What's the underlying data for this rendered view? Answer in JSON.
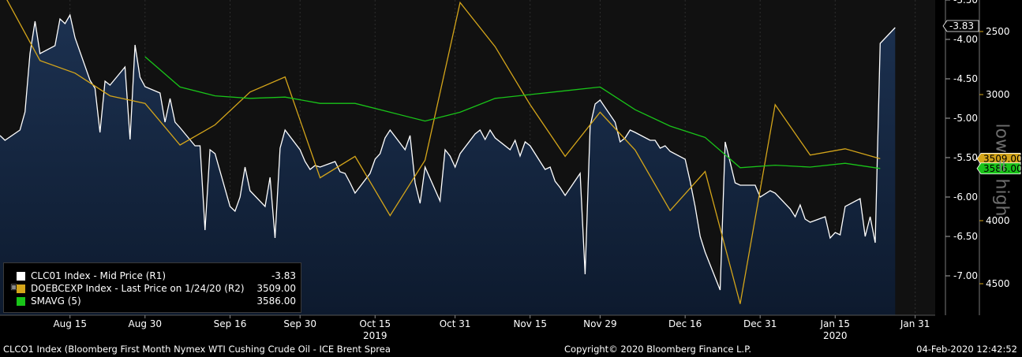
{
  "footer": {
    "left": "CLCO1 Index (Bloomberg First Month Nymex WTI Cushing Crude Oil - ICE Brent Sprea",
    "center": "Copyright© 2020 Bloomberg Finance L.P.",
    "right": "04-Feb-2020 12:42:52"
  },
  "watermark": "low = high",
  "legend": [
    {
      "name": "CLC01 Index - Mid Price (R1)",
      "value": "-3.83",
      "color": "#ffffff"
    },
    {
      "name": "DOEBCEXP Index - Last Price on 1/24/20 (R2)",
      "value": "3509.00",
      "color": "#d4a51a"
    },
    {
      "name": "SMAVG (5)",
      "value": "3586.00",
      "color": "#19c419"
    }
  ],
  "last_labels": {
    "spread": "-3.83",
    "exports": "3509.00",
    "smavg": "3586.00"
  },
  "colors": {
    "background": "#000000",
    "area_top": "#1c3150",
    "area_bottom": "#0d1a2e",
    "spread": "#ffffff",
    "exports": "#d4a51a",
    "smavg": "#19c419"
  },
  "chart_data": {
    "type": "line",
    "x_tick_labels": [
      "Aug 15",
      "Aug 30",
      "Sep 16",
      "Sep 30",
      "Oct 15",
      "Oct 31",
      "Nov 15",
      "Nov 29",
      "Dec 16",
      "Dec 31",
      "Jan 15",
      "Jan 31"
    ],
    "x_tick_dates": [
      "2019-08-15",
      "2019-08-30",
      "2019-09-16",
      "2019-09-30",
      "2019-10-15",
      "2019-10-31",
      "2019-11-15",
      "2019-11-29",
      "2019-12-16",
      "2019-12-31",
      "2020-01-15",
      "2020-01-31"
    ],
    "year_labels": [
      {
        "label": "2019",
        "date": "2019-10-15"
      },
      {
        "label": "2020",
        "date": "2020-01-15"
      }
    ],
    "axes": {
      "R1": {
        "ticks": [
          "-3.50",
          "-4.00",
          "-4.50",
          "-5.00",
          "-5.50",
          "-6.00",
          "-6.50",
          "-7.00"
        ],
        "range": [
          -3.5,
          -7.5
        ],
        "inverted": true
      },
      "R2": {
        "ticks": [
          "2500",
          "3000",
          "3500",
          "4000",
          "4500"
        ],
        "range": [
          2250,
          4750
        ],
        "inverted": true
      }
    },
    "series": [
      {
        "name": "CLC01 Index - Mid Price (R1)",
        "axis": "R1",
        "style": "area",
        "points": [
          [
            "2019-08-01",
            -5.22
          ],
          [
            "2019-08-02",
            -5.28
          ],
          [
            "2019-08-05",
            -5.15
          ],
          [
            "2019-08-06",
            -4.92
          ],
          [
            "2019-08-07",
            -4.18
          ],
          [
            "2019-08-08",
            -3.77
          ],
          [
            "2019-08-09",
            -4.18
          ],
          [
            "2019-08-12",
            -4.08
          ],
          [
            "2019-08-13",
            -3.74
          ],
          [
            "2019-08-14",
            -3.8
          ],
          [
            "2019-08-15",
            -3.69
          ],
          [
            "2019-08-16",
            -3.98
          ],
          [
            "2019-08-19",
            -4.52
          ],
          [
            "2019-08-20",
            -4.62
          ],
          [
            "2019-08-21",
            -5.18
          ],
          [
            "2019-08-22",
            -4.53
          ],
          [
            "2019-08-23",
            -4.58
          ],
          [
            "2019-08-26",
            -4.35
          ],
          [
            "2019-08-27",
            -5.27
          ],
          [
            "2019-08-28",
            -4.07
          ],
          [
            "2019-08-29",
            -4.48
          ],
          [
            "2019-08-30",
            -4.6
          ],
          [
            "2019-09-02",
            -4.68
          ],
          [
            "2019-09-03",
            -5.05
          ],
          [
            "2019-09-04",
            -4.75
          ],
          [
            "2019-09-05",
            -5.05
          ],
          [
            "2019-09-06",
            -5.12
          ],
          [
            "2019-09-09",
            -5.35
          ],
          [
            "2019-09-10",
            -5.35
          ],
          [
            "2019-09-11",
            -6.42
          ],
          [
            "2019-09-12",
            -5.4
          ],
          [
            "2019-09-13",
            -5.45
          ],
          [
            "2019-09-16",
            -6.12
          ],
          [
            "2019-09-17",
            -6.18
          ],
          [
            "2019-09-18",
            -6.0
          ],
          [
            "2019-09-19",
            -5.62
          ],
          [
            "2019-09-20",
            -5.92
          ],
          [
            "2019-09-23",
            -6.12
          ],
          [
            "2019-09-24",
            -5.75
          ],
          [
            "2019-09-25",
            -6.52
          ],
          [
            "2019-09-26",
            -5.38
          ],
          [
            "2019-09-27",
            -5.15
          ],
          [
            "2019-09-30",
            -5.4
          ],
          [
            "2019-10-01",
            -5.55
          ],
          [
            "2019-10-02",
            -5.65
          ],
          [
            "2019-10-03",
            -5.6
          ],
          [
            "2019-10-04",
            -5.62
          ],
          [
            "2019-10-07",
            -5.55
          ],
          [
            "2019-10-08",
            -5.68
          ],
          [
            "2019-10-09",
            -5.7
          ],
          [
            "2019-10-10",
            -5.82
          ],
          [
            "2019-10-11",
            -5.95
          ],
          [
            "2019-10-14",
            -5.7
          ],
          [
            "2019-10-15",
            -5.52
          ],
          [
            "2019-10-16",
            -5.45
          ],
          [
            "2019-10-17",
            -5.25
          ],
          [
            "2019-10-18",
            -5.15
          ],
          [
            "2019-10-21",
            -5.4
          ],
          [
            "2019-10-22",
            -5.22
          ],
          [
            "2019-10-23",
            -5.82
          ],
          [
            "2019-10-24",
            -6.08
          ],
          [
            "2019-10-25",
            -5.62
          ],
          [
            "2019-10-28",
            -6.05
          ],
          [
            "2019-10-29",
            -5.4
          ],
          [
            "2019-10-30",
            -5.48
          ],
          [
            "2019-10-31",
            -5.62
          ],
          [
            "2019-11-01",
            -5.45
          ],
          [
            "2019-11-04",
            -5.2
          ],
          [
            "2019-11-05",
            -5.15
          ],
          [
            "2019-11-06",
            -5.27
          ],
          [
            "2019-11-07",
            -5.15
          ],
          [
            "2019-11-08",
            -5.25
          ],
          [
            "2019-11-11",
            -5.4
          ],
          [
            "2019-11-12",
            -5.28
          ],
          [
            "2019-11-13",
            -5.48
          ],
          [
            "2019-11-14",
            -5.3
          ],
          [
            "2019-11-15",
            -5.35
          ],
          [
            "2019-11-18",
            -5.65
          ],
          [
            "2019-11-19",
            -5.62
          ],
          [
            "2019-11-20",
            -5.8
          ],
          [
            "2019-11-21",
            -5.88
          ],
          [
            "2019-11-22",
            -5.98
          ],
          [
            "2019-11-25",
            -5.7
          ],
          [
            "2019-11-26",
            -6.98
          ],
          [
            "2019-11-27",
            -5.1
          ],
          [
            "2019-11-28",
            -4.82
          ],
          [
            "2019-11-29",
            -4.77
          ],
          [
            "2019-12-02",
            -5.05
          ],
          [
            "2019-12-03",
            -5.3
          ],
          [
            "2019-12-04",
            -5.25
          ],
          [
            "2019-12-05",
            -5.15
          ],
          [
            "2019-12-06",
            -5.18
          ],
          [
            "2019-12-09",
            -5.28
          ],
          [
            "2019-12-10",
            -5.28
          ],
          [
            "2019-12-11",
            -5.38
          ],
          [
            "2019-12-12",
            -5.35
          ],
          [
            "2019-12-13",
            -5.42
          ],
          [
            "2019-12-16",
            -5.52
          ],
          [
            "2019-12-17",
            -5.8
          ],
          [
            "2019-12-18",
            -6.12
          ],
          [
            "2019-12-19",
            -6.5
          ],
          [
            "2019-12-20",
            -6.7
          ],
          [
            "2019-12-23",
            -7.18
          ],
          [
            "2019-12-24",
            -5.3
          ],
          [
            "2019-12-26",
            -5.82
          ],
          [
            "2019-12-27",
            -5.85
          ],
          [
            "2019-12-30",
            -5.85
          ],
          [
            "2019-12-31",
            -6.0
          ],
          [
            "2020-01-02",
            -5.92
          ],
          [
            "2020-01-03",
            -5.95
          ],
          [
            "2020-01-06",
            -6.15
          ],
          [
            "2020-01-07",
            -6.25
          ],
          [
            "2020-01-08",
            -6.1
          ],
          [
            "2020-01-09",
            -6.28
          ],
          [
            "2020-01-10",
            -6.32
          ],
          [
            "2020-01-13",
            -6.25
          ],
          [
            "2020-01-14",
            -6.52
          ],
          [
            "2020-01-15",
            -6.45
          ],
          [
            "2020-01-16",
            -6.48
          ],
          [
            "2020-01-17",
            -6.12
          ],
          [
            "2020-01-20",
            -6.02
          ],
          [
            "2020-01-21",
            -6.5
          ],
          [
            "2020-01-22",
            -6.25
          ],
          [
            "2020-01-23",
            -6.58
          ],
          [
            "2020-01-24",
            -4.05
          ],
          [
            "2020-01-27",
            -3.85
          ]
        ]
      },
      {
        "name": "DOEBCEXP Index - Last Price on 1/24/20 (R2)",
        "axis": "R2",
        "style": "line",
        "points": [
          [
            "2019-08-02",
            2220
          ],
          [
            "2019-08-09",
            2730
          ],
          [
            "2019-08-16",
            2830
          ],
          [
            "2019-08-23",
            3010
          ],
          [
            "2019-08-30",
            3070
          ],
          [
            "2019-09-06",
            3400
          ],
          [
            "2019-09-13",
            3240
          ],
          [
            "2019-09-20",
            2980
          ],
          [
            "2019-09-27",
            2860
          ],
          [
            "2019-10-04",
            3660
          ],
          [
            "2019-10-11",
            3490
          ],
          [
            "2019-10-18",
            3960
          ],
          [
            "2019-10-25",
            3520
          ],
          [
            "2019-11-01",
            2270
          ],
          [
            "2019-11-08",
            2620
          ],
          [
            "2019-11-15",
            3080
          ],
          [
            "2019-11-22",
            3490
          ],
          [
            "2019-11-29",
            3140
          ],
          [
            "2019-12-06",
            3440
          ],
          [
            "2019-12-13",
            3920
          ],
          [
            "2019-12-20",
            3610
          ],
          [
            "2019-12-27",
            4660
          ],
          [
            "2020-01-03",
            3080
          ],
          [
            "2020-01-10",
            3480
          ],
          [
            "2020-01-17",
            3430
          ],
          [
            "2020-01-24",
            3509
          ]
        ]
      },
      {
        "name": "SMAVG (5)",
        "axis": "R2",
        "style": "line",
        "points": [
          [
            "2019-08-30",
            2700
          ],
          [
            "2019-09-06",
            2940
          ],
          [
            "2019-09-13",
            3010
          ],
          [
            "2019-09-20",
            3030
          ],
          [
            "2019-09-27",
            3020
          ],
          [
            "2019-10-04",
            3070
          ],
          [
            "2019-10-11",
            3070
          ],
          [
            "2019-10-18",
            3140
          ],
          [
            "2019-10-25",
            3210
          ],
          [
            "2019-11-01",
            3140
          ],
          [
            "2019-11-08",
            3030
          ],
          [
            "2019-11-15",
            3000
          ],
          [
            "2019-11-22",
            2970
          ],
          [
            "2019-11-29",
            2940
          ],
          [
            "2019-12-06",
            3120
          ],
          [
            "2019-12-13",
            3250
          ],
          [
            "2019-12-20",
            3340
          ],
          [
            "2019-12-27",
            3580
          ],
          [
            "2020-01-03",
            3560
          ],
          [
            "2020-01-10",
            3575
          ],
          [
            "2020-01-17",
            3545
          ],
          [
            "2020-01-24",
            3586
          ]
        ]
      }
    ]
  }
}
